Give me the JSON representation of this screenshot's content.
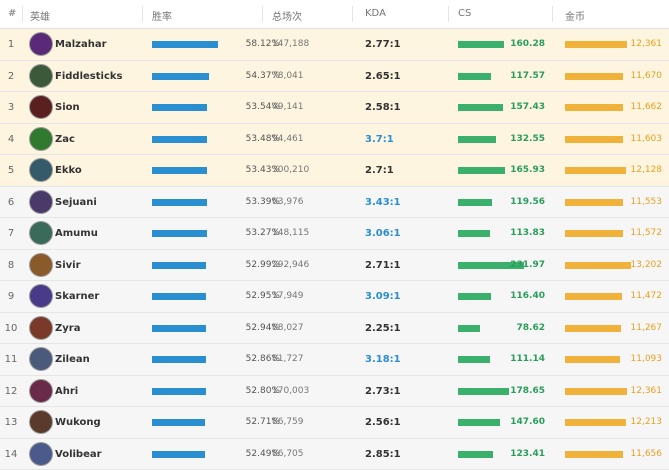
{
  "table": {
    "header": [
      "#",
      "英雄",
      "胜率",
      "总场次",
      "KDA",
      "CS",
      "金币"
    ],
    "rows": [
      {
        "rank": 1,
        "name": "Malzahar",
        "win_rate": "58.12%",
        "games": "147,188",
        "kda": "2.77:1",
        "cs": "160.28",
        "gold": "12,361",
        "kda_color": "#333333",
        "background": "#fdf5df"
      },
      {
        "rank": 2,
        "name": "Fiddlesticks",
        "win_rate": "54.37%",
        "games": "78,041",
        "kda": "2.65:1",
        "cs": "117.57",
        "gold": "11,670",
        "kda_color": "#333333",
        "background": "#fdf5df"
      },
      {
        "rank": 3,
        "name": "Sion",
        "win_rate": "53.54%",
        "games": "49,141",
        "kda": "2.58:1",
        "cs": "157.43",
        "gold": "11,662",
        "kda_color": "#333333",
        "background": "#fdf5df"
      },
      {
        "rank": 4,
        "name": "Zac",
        "win_rate": "53.48%",
        "games": "94,461",
        "kda": "3.7:1",
        "cs": "132.55",
        "gold": "11,603",
        "kda_color": "#2a8fd0",
        "background": "#fdf5df"
      },
      {
        "rank": 5,
        "name": "Ekko",
        "win_rate": "53.43%",
        "games": "300,210",
        "kda": "2.7:1",
        "cs": "165.93",
        "gold": "12,128",
        "kda_color": "#333333",
        "background": "#fdf5df"
      },
      {
        "rank": 6,
        "name": "Sejuani",
        "win_rate": "53.39%",
        "games": "63,976",
        "kda": "3.43:1",
        "cs": "119.56",
        "gold": "11,553",
        "kda_color": "#2a8fd0",
        "background": "#f6f6f6"
      },
      {
        "rank": 7,
        "name": "Amumu",
        "win_rate": "53.27%",
        "games": "148,115",
        "kda": "3.06:1",
        "cs": "113.83",
        "gold": "11,572",
        "kda_color": "#2a8fd0",
        "background": "#f6f6f6"
      },
      {
        "rank": 8,
        "name": "Sivir",
        "win_rate": "52.99%",
        "games": "292,946",
        "kda": "2.71:1",
        "cs": "231.97",
        "gold": "13,202",
        "kda_color": "#333333",
        "background": "#f6f6f6"
      },
      {
        "rank": 9,
        "name": "Skarner",
        "win_rate": "52.95%",
        "games": "17,949",
        "kda": "3.09:1",
        "cs": "116.40",
        "gold": "11,472",
        "kda_color": "#2a8fd0",
        "background": "#f6f6f6"
      },
      {
        "rank": 10,
        "name": "Zyra",
        "win_rate": "52.94%",
        "games": "88,027",
        "kda": "2.25:1",
        "cs": "78.62",
        "gold": "11,267",
        "kda_color": "#333333",
        "background": "#f6f6f6"
      },
      {
        "rank": 11,
        "name": "Zilean",
        "win_rate": "52.86%",
        "games": "81,727",
        "kda": "3.18:1",
        "cs": "111.14",
        "gold": "11,093",
        "kda_color": "#2a8fd0",
        "background": "#f6f6f6"
      },
      {
        "rank": 12,
        "name": "Ahri",
        "win_rate": "52.80%",
        "games": "170,003",
        "kda": "2.73:1",
        "cs": "178.65",
        "gold": "12,361",
        "kda_color": "#333333",
        "background": "#f6f6f6"
      },
      {
        "rank": 13,
        "name": "Wukong",
        "win_rate": "52.71%",
        "games": "86,759",
        "kda": "2.56:1",
        "cs": "147.60",
        "gold": "12,213",
        "kda_color": "#333333",
        "background": "#f6f6f6"
      },
      {
        "rank": 14,
        "name": "Volibear",
        "win_rate": "52.49%",
        "games": "86,705",
        "kda": "2.85:1",
        "cs": "123.41",
        "gold": "11,656",
        "kda_color": "#333333",
        "background": "#f6f6f6"
      }
    ]
  }
}
